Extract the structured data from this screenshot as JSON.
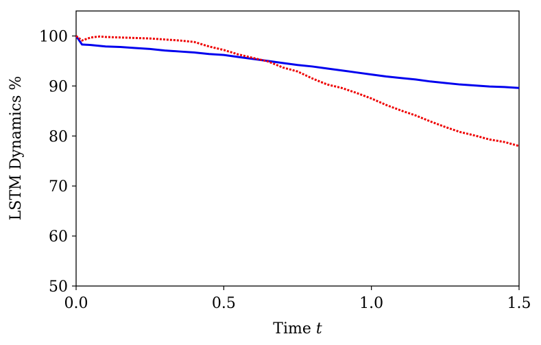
{
  "chart_data": {
    "type": "line",
    "xlabel": "Time",
    "xlabel_var": "t",
    "ylabel": "LSTM Dynamics %",
    "xlim": [
      0.0,
      1.5
    ],
    "ylim": [
      50,
      105
    ],
    "xticks": [
      0.0,
      0.5,
      1.0,
      1.5
    ],
    "xtick_labels": [
      "0.0",
      "0.5",
      "1.0",
      "1.5"
    ],
    "yticks": [
      50,
      60,
      70,
      80,
      90,
      100
    ],
    "ytick_labels": [
      "50",
      "60",
      "70",
      "80",
      "90",
      "100"
    ],
    "grid": false,
    "legend": false,
    "series": [
      {
        "color": "#0000ee",
        "style": "solid",
        "x": [
          0.0,
          0.02,
          0.05,
          0.1,
          0.15,
          0.2,
          0.25,
          0.3,
          0.35,
          0.4,
          0.45,
          0.5,
          0.55,
          0.6,
          0.65,
          0.7,
          0.75,
          0.8,
          0.85,
          0.9,
          0.95,
          1.0,
          1.05,
          1.1,
          1.15,
          1.2,
          1.25,
          1.3,
          1.35,
          1.4,
          1.45,
          1.5
        ],
        "y": [
          100.0,
          98.3,
          98.2,
          97.9,
          97.8,
          97.6,
          97.4,
          97.1,
          96.9,
          96.7,
          96.4,
          96.2,
          95.8,
          95.4,
          95.0,
          94.6,
          94.2,
          93.9,
          93.5,
          93.1,
          92.7,
          92.3,
          91.9,
          91.6,
          91.3,
          90.9,
          90.6,
          90.3,
          90.1,
          89.9,
          89.8,
          89.6
        ]
      },
      {
        "color": "#ee0000",
        "style": "dotted",
        "x": [
          0.0,
          0.02,
          0.05,
          0.08,
          0.1,
          0.15,
          0.2,
          0.25,
          0.3,
          0.35,
          0.4,
          0.45,
          0.5,
          0.55,
          0.6,
          0.65,
          0.7,
          0.75,
          0.8,
          0.85,
          0.9,
          0.95,
          1.0,
          1.05,
          1.1,
          1.15,
          1.2,
          1.25,
          1.3,
          1.35,
          1.4,
          1.45,
          1.5
        ],
        "y": [
          100.0,
          99.1,
          99.7,
          99.9,
          99.8,
          99.7,
          99.6,
          99.5,
          99.3,
          99.1,
          98.8,
          97.9,
          97.2,
          96.3,
          95.6,
          94.9,
          93.7,
          92.9,
          91.5,
          90.3,
          89.6,
          88.6,
          87.5,
          86.2,
          85.1,
          84.1,
          82.9,
          81.8,
          80.8,
          80.1,
          79.3,
          78.8,
          78.0
        ]
      }
    ]
  }
}
